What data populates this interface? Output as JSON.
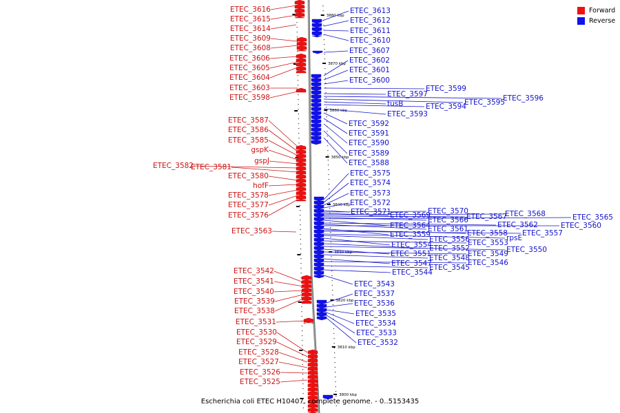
{
  "caption": "Escherichia coli ETEC H10407, complete genome. - 0..5153435",
  "legend": [
    {
      "label": "Forward",
      "color": "#ee1111"
    },
    {
      "label": "Reverse",
      "color": "#1111ee"
    }
  ],
  "ticks": [
    {
      "label": "3880 kbp"
    },
    {
      "label": "3870 kbp"
    },
    {
      "label": "3860 kbp"
    },
    {
      "label": "3850 kbp"
    },
    {
      "label": "3840 kbp"
    },
    {
      "label": "3830 kbp"
    },
    {
      "label": "3820 kbp"
    },
    {
      "label": "3810 kbp"
    },
    {
      "label": "3800 kbp"
    }
  ],
  "forward_genes": [
    "ETEC_3616",
    "ETEC_3615",
    "ETEC_3614",
    "ETEC_3609",
    "ETEC_3608",
    "ETEC_3606",
    "ETEC_3605",
    "ETEC_3604",
    "ETEC_3603",
    "ETEC_3598",
    "ETEC_3587",
    "ETEC_3586",
    "ETEC_3585",
    "gspK",
    "gspJ",
    "ETEC_3582",
    "ETEC_3581",
    "ETEC_3580",
    "hofF",
    "ETEC_3578",
    "ETEC_3577",
    "ETEC_3576",
    "ETEC_3563",
    "ETEC_3542",
    "ETEC_3541",
    "ETEC_3540",
    "ETEC_3539",
    "ETEC_3538",
    "ETEC_3531",
    "ETEC_3530",
    "ETEC_3529",
    "ETEC_3528",
    "ETEC_3527",
    "ETEC_3526",
    "ETEC_3525"
  ],
  "reverse_genes": [
    "ETEC_3613",
    "ETEC_3612",
    "ETEC_3611",
    "ETEC_3610",
    "ETEC_3607",
    "ETEC_3602",
    "ETEC_3601",
    "ETEC_3600",
    "ETEC_3599",
    "ETEC_3597",
    "ETEC_3596",
    "ETEC_3595",
    "tusB",
    "ETEC_3594",
    "ETEC_3593",
    "ETEC_3592",
    "ETEC_3591",
    "ETEC_3590",
    "ETEC_3589",
    "ETEC_3588",
    "ETEC_3575",
    "ETEC_3574",
    "ETEC_3573",
    "ETEC_3572",
    "ETEC_3571",
    "ETEC_3570",
    "ETEC_3569",
    "ETEC_3568",
    "ETEC_3567",
    "ETEC_3566",
    "ETEC_3565",
    "ETEC_3564",
    "ETEC_3562",
    "ETEC_3561",
    "ETEC_3560",
    "ETEC_3559",
    "ETEC_3558",
    "ETEC_3557",
    "rpsE",
    "ETEC_3556",
    "ETEC_3554",
    "ETEC_3553",
    "ETEC_3552",
    "ETEC_3550",
    "ETEC_3551",
    "ETEC_3549",
    "ETEC_3548",
    "ETEC_3547",
    "ETEC_3546",
    "ETEC_3545",
    "ETEC_3544",
    "ETEC_3543",
    "ETEC_3537",
    "ETEC_3536",
    "ETEC_3535",
    "ETEC_3534",
    "ETEC_3533",
    "ETEC_3532"
  ]
}
